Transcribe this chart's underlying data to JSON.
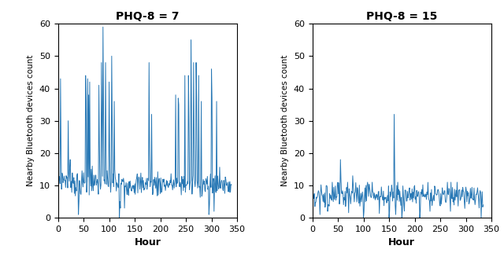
{
  "title1": "PHQ-8 = 7",
  "title2": "PHQ-8 = 15",
  "xlabel": "Hour",
  "ylabel": "Nearby Bluetooth devices count",
  "xlim": [
    0,
    350
  ],
  "ylim1": [
    0,
    60
  ],
  "ylim2": [
    0,
    60
  ],
  "xticks": [
    0,
    50,
    100,
    150,
    200,
    250,
    300,
    350
  ],
  "yticks1": [
    0,
    10,
    20,
    30,
    40,
    50,
    60
  ],
  "yticks2": [
    0,
    10,
    20,
    30,
    40,
    50,
    60
  ],
  "line_color": "#2878b5",
  "line_width": 0.7,
  "background_color": "#ffffff",
  "title_fontsize": 10,
  "axis_label_fontsize": 9,
  "tick_fontsize": 8
}
